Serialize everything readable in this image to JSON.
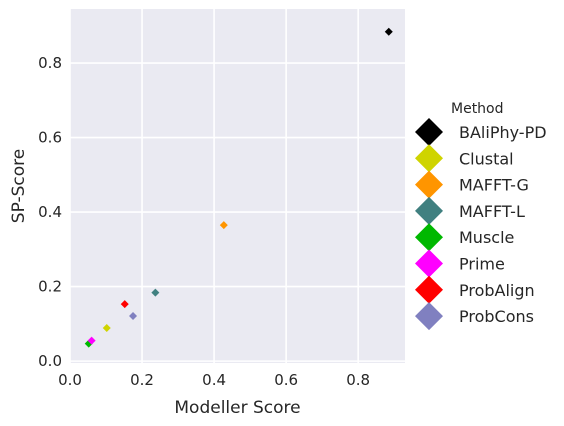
{
  "chart_data": {
    "type": "scatter",
    "title": "",
    "xlabel": "Modeller Score",
    "ylabel": "SP-Score",
    "xlim": [
      0.0,
      0.93
    ],
    "ylim": [
      -0.005,
      0.945
    ],
    "xticks": [
      0.0,
      0.2,
      0.4,
      0.6,
      0.8
    ],
    "yticks": [
      0.0,
      0.2,
      0.4,
      0.6,
      0.8
    ],
    "xtick_labels": [
      "0.0",
      "0.2",
      "0.4",
      "0.6",
      "0.8"
    ],
    "ytick_labels": [
      "0.0",
      "0.2",
      "0.4",
      "0.6",
      "0.8"
    ],
    "grid": true,
    "background": "#eaeaf2",
    "legend": {
      "title": "Method",
      "placement": "right-outside"
    },
    "series": [
      {
        "name": "BAliPhy-PD",
        "color": "#000000",
        "x": 0.885,
        "y": 0.884
      },
      {
        "name": "Clustal",
        "color": "#cfd400",
        "x": 0.102,
        "y": 0.089
      },
      {
        "name": "MAFFT-G",
        "color": "#ff9500",
        "x": 0.427,
        "y": 0.365
      },
      {
        "name": "MAFFT-L",
        "color": "#408080",
        "x": 0.237,
        "y": 0.184
      },
      {
        "name": "Muscle",
        "color": "#00b800",
        "x": 0.052,
        "y": 0.047
      },
      {
        "name": "Prime",
        "color": "#ff00ff",
        "x": 0.06,
        "y": 0.055
      },
      {
        "name": "ProbAlign",
        "color": "#ff0000",
        "x": 0.152,
        "y": 0.153
      },
      {
        "name": "ProbCons",
        "color": "#8080c0",
        "x": 0.175,
        "y": 0.121
      }
    ]
  }
}
